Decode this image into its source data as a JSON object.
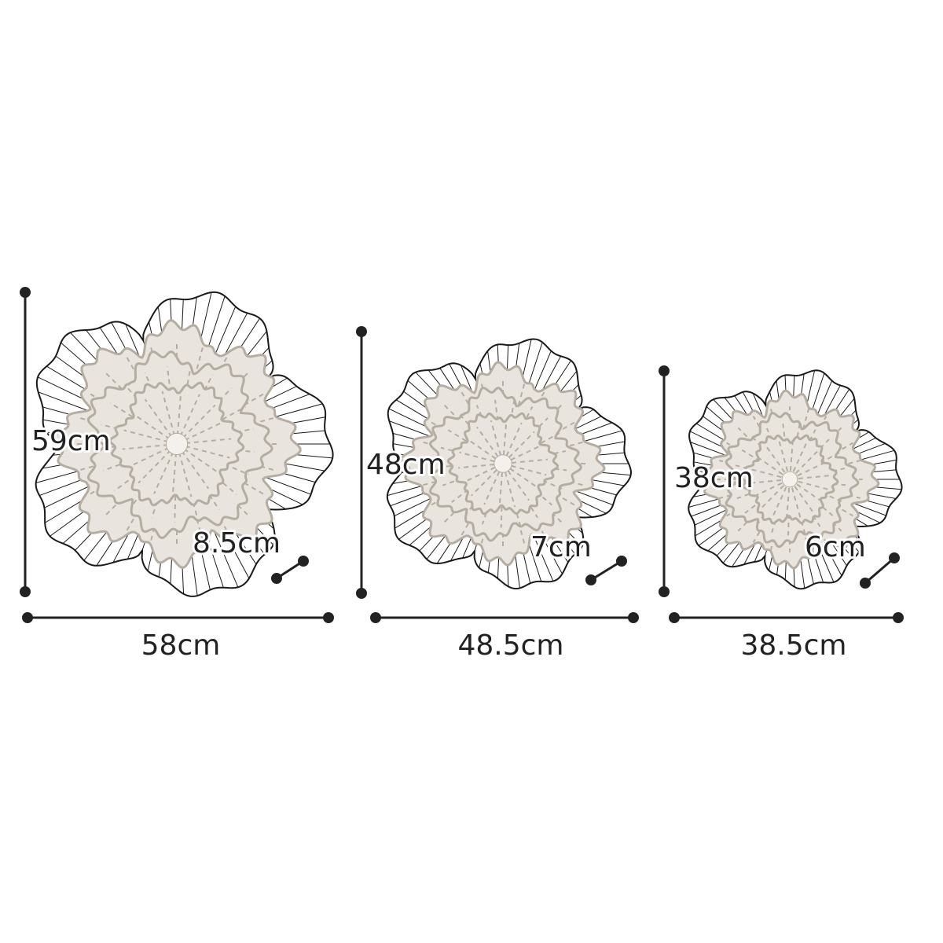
{
  "items": [
    {
      "width_label": "58cm",
      "height_label": "59cm",
      "depth_label": "8.5cm"
    },
    {
      "width_label": "48.5cm",
      "height_label": "48cm",
      "depth_label": "7cm"
    },
    {
      "width_label": "38.5cm",
      "height_label": "38cm",
      "depth_label": "6cm"
    }
  ],
  "colors": {
    "line": "#222222",
    "flower_fill": "#e9e5de",
    "flower_shade": "#b5ada2",
    "wire": "#1a1a1a"
  }
}
